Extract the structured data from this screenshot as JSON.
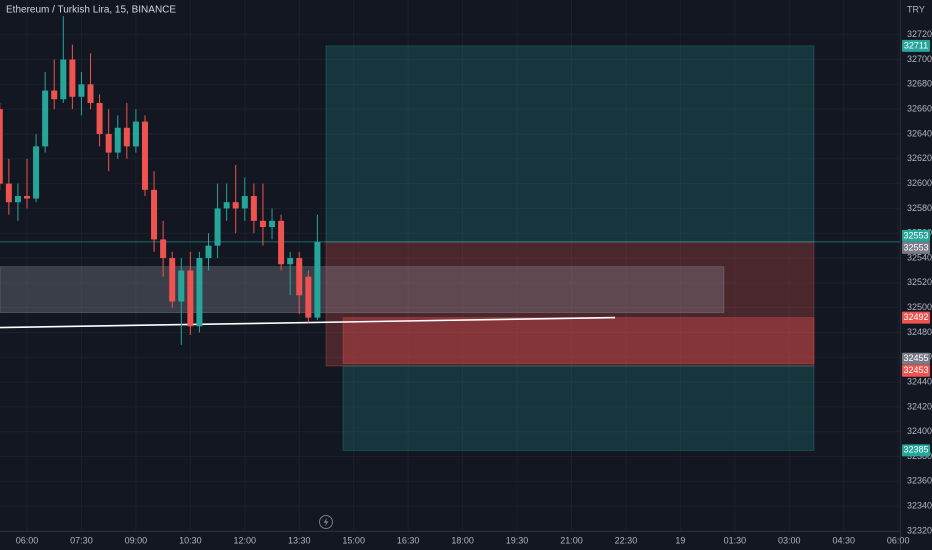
{
  "chart_data": {
    "type": "candlestick",
    "title": "Ethereum / Turkish Lira, 15, BINANCE",
    "currency": "TRY",
    "x": [
      "05:15",
      "05:30",
      "05:45",
      "06:00",
      "06:15",
      "06:30",
      "06:45",
      "07:00",
      "07:15",
      "07:30",
      "07:45",
      "08:00",
      "08:15",
      "08:30",
      "08:45",
      "09:00",
      "09:15",
      "09:30",
      "09:45",
      "10:00",
      "10:15",
      "10:30",
      "10:45",
      "11:00",
      "11:15",
      "11:30",
      "11:45",
      "12:00",
      "12:15",
      "12:30",
      "12:45",
      "13:00",
      "13:15",
      "13:30",
      "13:45",
      "14:00"
    ],
    "open": [
      32660,
      32600,
      32585,
      32590,
      32588,
      32630,
      32675,
      32668,
      32700,
      32670,
      32680,
      32665,
      32640,
      32625,
      32645,
      32630,
      32650,
      32595,
      32555,
      32540,
      32505,
      32530,
      32485,
      32540,
      32550,
      32580,
      32585,
      32580,
      32590,
      32570,
      32565,
      32570,
      32535,
      32540,
      32525,
      32492
    ],
    "high": [
      32665,
      32620,
      32600,
      32620,
      32640,
      32690,
      32700,
      32735,
      32712,
      32690,
      32705,
      32672,
      32660,
      32655,
      32665,
      32660,
      32655,
      32610,
      32570,
      32545,
      32540,
      32545,
      32545,
      32560,
      32600,
      32600,
      32615,
      32605,
      32600,
      32600,
      32580,
      32575,
      32545,
      32545,
      32530,
      32575
    ],
    "low": [
      32595,
      32575,
      32570,
      32580,
      32585,
      32625,
      32660,
      32665,
      32660,
      32655,
      32660,
      32630,
      32610,
      32620,
      32620,
      32625,
      32590,
      32545,
      32525,
      32500,
      32470,
      32478,
      32480,
      32530,
      32540,
      32570,
      32560,
      32570,
      32560,
      32550,
      32555,
      32530,
      32510,
      32495,
      32488,
      32490
    ],
    "close": [
      32600,
      32585,
      32590,
      32588,
      32630,
      32675,
      32668,
      32700,
      32670,
      32680,
      32665,
      32640,
      32625,
      32645,
      32630,
      32650,
      32595,
      32555,
      32540,
      32505,
      32530,
      32485,
      32540,
      32550,
      32580,
      32585,
      32580,
      32590,
      32570,
      32565,
      32570,
      32535,
      32540,
      32510,
      32492,
      32553
    ],
    "up_color": "#26a69a",
    "down_color": "#ef5350",
    "ylim": [
      32320,
      32748
    ],
    "yticks": [
      32320,
      32340,
      32360,
      32380,
      32400,
      32420,
      32440,
      32460,
      32480,
      32500,
      32520,
      32540,
      32560,
      32580,
      32600,
      32620,
      32640,
      32660,
      32680,
      32700,
      32720
    ],
    "xticks": [
      "06:00",
      "07:30",
      "09:00",
      "10:30",
      "12:00",
      "13:30",
      "15:00",
      "16:30",
      "18:00",
      "19:30",
      "21:00",
      "22:30",
      "19",
      "01:30",
      "03:00",
      "04:30",
      "06:00"
    ],
    "grid": true,
    "zones": [
      {
        "from": 32711,
        "to": 32553,
        "color": "#26a69a"
      },
      {
        "from": 32553,
        "to": 32453,
        "color": "#ef5350"
      },
      {
        "from": 32492,
        "to": 32455,
        "color": "#ef5350"
      },
      {
        "from": 32453,
        "to": 32385,
        "color": "#26a69a"
      },
      {
        "from": 32533,
        "to": 32496,
        "color": "#9598a1"
      }
    ],
    "trendline": {
      "values": [
        32484,
        32492
      ],
      "color": "#ffffff"
    },
    "price_labels": [
      {
        "value": 32711,
        "color": "#26a69a"
      },
      {
        "value": 32553,
        "color": "#26a69a"
      },
      {
        "value": 32553,
        "color": "#787b86"
      },
      {
        "value": 32492,
        "color": "#ef5350"
      },
      {
        "value": 32455,
        "color": "#787b86"
      },
      {
        "value": 32453,
        "color": "#ef5350"
      },
      {
        "value": 32385,
        "color": "#26a69a"
      }
    ]
  }
}
